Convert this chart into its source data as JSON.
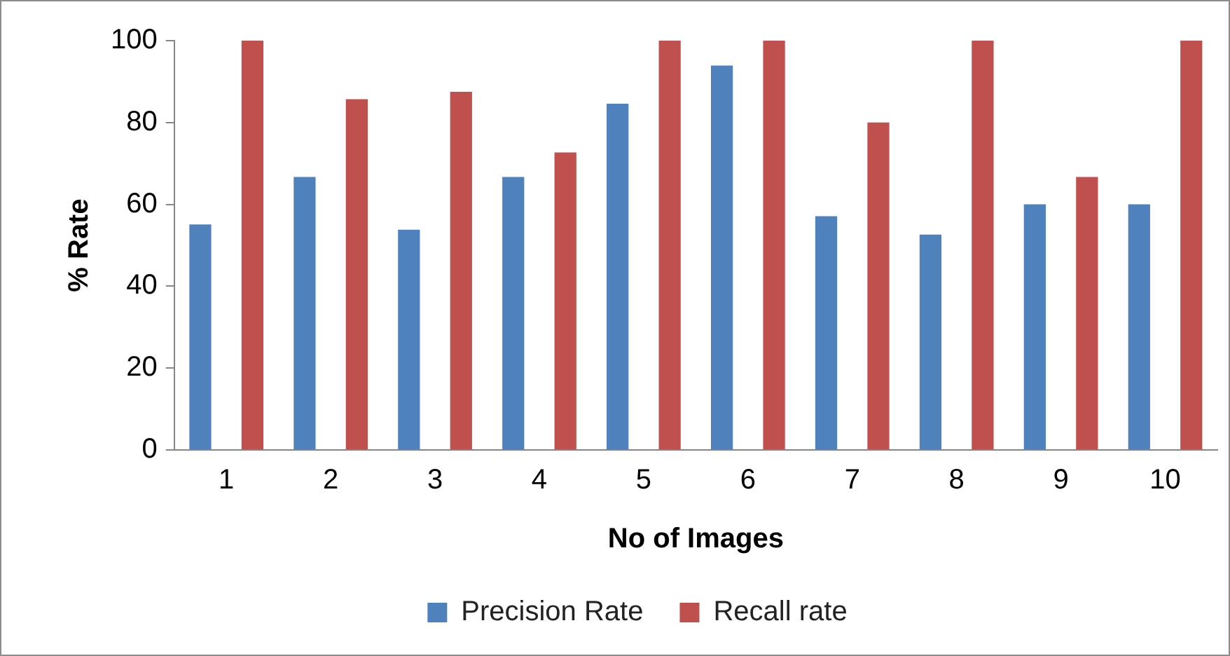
{
  "chart_data": {
    "type": "bar",
    "xlabel": "No of Images",
    "ylabel": "% Rate",
    "categories": [
      "1",
      "2",
      "3",
      "4",
      "5",
      "6",
      "7",
      "8",
      "9",
      "10"
    ],
    "series": [
      {
        "name": "Precision Rate",
        "color": "#4f81bd",
        "values": [
          55.1,
          66.7,
          53.8,
          66.7,
          84.6,
          93.9,
          57.1,
          52.6,
          60,
          60
        ]
      },
      {
        "name": "Recall rate",
        "color": "#c0504d",
        "values": [
          100,
          85.7,
          87.5,
          72.7,
          100,
          100,
          80,
          100,
          66.7,
          100
        ]
      }
    ],
    "ylim": [
      0,
      100
    ],
    "yticks": [
      0,
      20,
      40,
      60,
      80,
      100
    ],
    "grid": false,
    "legend": "bottom"
  }
}
